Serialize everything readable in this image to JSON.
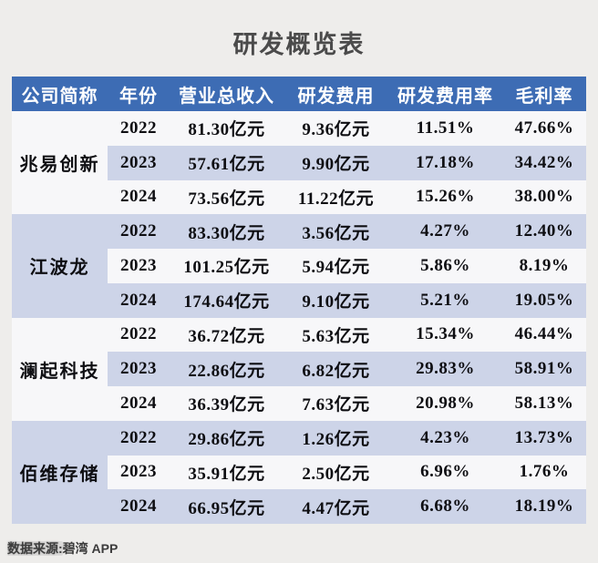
{
  "title": "研发概览表",
  "chart_data": {
    "type": "table",
    "title": "研发概览表",
    "columns": [
      "公司简称",
      "年份",
      "营业总收入",
      "研发费用",
      "研发费用率",
      "毛利率"
    ],
    "rows": [
      [
        "兆易创新",
        "2022",
        "81.30亿元",
        "9.36亿元",
        "11.51%",
        "47.66%"
      ],
      [
        "兆易创新",
        "2023",
        "57.61亿元",
        "9.90亿元",
        "17.18%",
        "34.42%"
      ],
      [
        "兆易创新",
        "2024",
        "73.56亿元",
        "11.22亿元",
        "15.26%",
        "38.00%"
      ],
      [
        "江波龙",
        "2022",
        "83.30亿元",
        "3.56亿元",
        "4.27%",
        "12.40%"
      ],
      [
        "江波龙",
        "2023",
        "101.25亿元",
        "5.94亿元",
        "5.86%",
        "8.19%"
      ],
      [
        "江波龙",
        "2024",
        "174.64亿元",
        "9.10亿元",
        "5.21%",
        "19.05%"
      ],
      [
        "澜起科技",
        "2022",
        "36.72亿元",
        "5.63亿元",
        "15.34%",
        "46.44%"
      ],
      [
        "澜起科技",
        "2023",
        "22.86亿元",
        "6.82亿元",
        "29.83%",
        "58.91%"
      ],
      [
        "澜起科技",
        "2024",
        "36.39亿元",
        "7.63亿元",
        "20.98%",
        "58.13%"
      ],
      [
        "佰维存储",
        "2022",
        "29.86亿元",
        "1.26亿元",
        "4.23%",
        "13.73%"
      ],
      [
        "佰维存储",
        "2023",
        "35.91亿元",
        "2.50亿元",
        "6.96%",
        "1.76%"
      ],
      [
        "佰维存储",
        "2024",
        "66.95亿元",
        "4.47亿元",
        "6.68%",
        "18.19%"
      ]
    ],
    "layout": {
      "header_bg": "#3d6cb4",
      "stripe_bg": "#cdd4e8",
      "row_bg": "#f7f7f9",
      "page_bg": "#eeedeb",
      "merged_first_column_groups": 4
    }
  },
  "footer": {
    "source_prefix": "数据来源:",
    "source_suffix": "碧湾 APP"
  }
}
